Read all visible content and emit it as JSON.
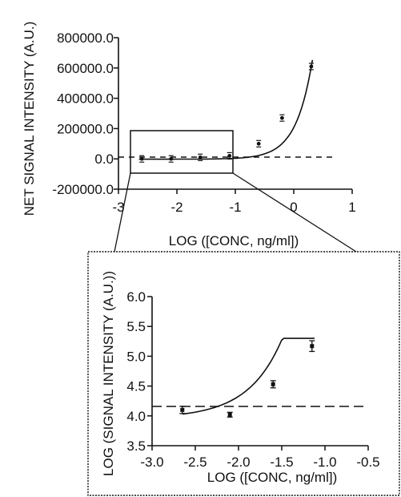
{
  "chart_data": [
    {
      "type": "scatter",
      "title": "",
      "xlabel": "LOG ([CONC, ng/ml])",
      "ylabel": "NET SIGNAL INTENSITY (A.U.)",
      "xlim": [
        -3,
        1
      ],
      "ylim": [
        -200000,
        800000
      ],
      "x_ticks": [
        "-3",
        "-2",
        "-1",
        "0",
        "1"
      ],
      "y_ticks": [
        "-200000.0",
        "0.0",
        "200000.0",
        "400000.0",
        "600000.0",
        "800000.0"
      ],
      "points": [
        {
          "x": -2.6,
          "y": 0
        },
        {
          "x": -2.1,
          "y": 0
        },
        {
          "x": -1.6,
          "y": 10000
        },
        {
          "x": -1.1,
          "y": 20000
        },
        {
          "x": -0.6,
          "y": 100000
        },
        {
          "x": -0.2,
          "y": 270000
        },
        {
          "x": 0.3,
          "y": 610000
        }
      ],
      "fit": "exponential",
      "baseline_dashed": 0,
      "zoom_box": {
        "xlim": [
          -2.7,
          -1.05
        ],
        "ylim": [
          -120000,
          170000
        ]
      }
    },
    {
      "type": "scatter",
      "title": "",
      "xlabel": "LOG ([CONC, ng/ml])",
      "ylabel": "LOG (SIGNAL INTENSITY (A.U.))",
      "xlim": [
        -3.0,
        -0.5
      ],
      "ylim": [
        3.5,
        6.0
      ],
      "x_ticks": [
        "-3.0",
        "-2.5",
        "-2.0",
        "-1.5",
        "-1.0",
        "-0.5"
      ],
      "y_ticks": [
        "3.5",
        "4.0",
        "4.5",
        "5.0",
        "5.5",
        "6.0"
      ],
      "points": [
        {
          "x": -2.65,
          "y": 4.1,
          "err": 0.06
        },
        {
          "x": -2.1,
          "y": 4.02,
          "err": 0.04
        },
        {
          "x": -1.6,
          "y": 4.53,
          "err": 0.06
        },
        {
          "x": -1.15,
          "y": 5.17,
          "err": 0.09
        }
      ],
      "fit": "exponential",
      "baseline_dashed": 3.87
    }
  ]
}
